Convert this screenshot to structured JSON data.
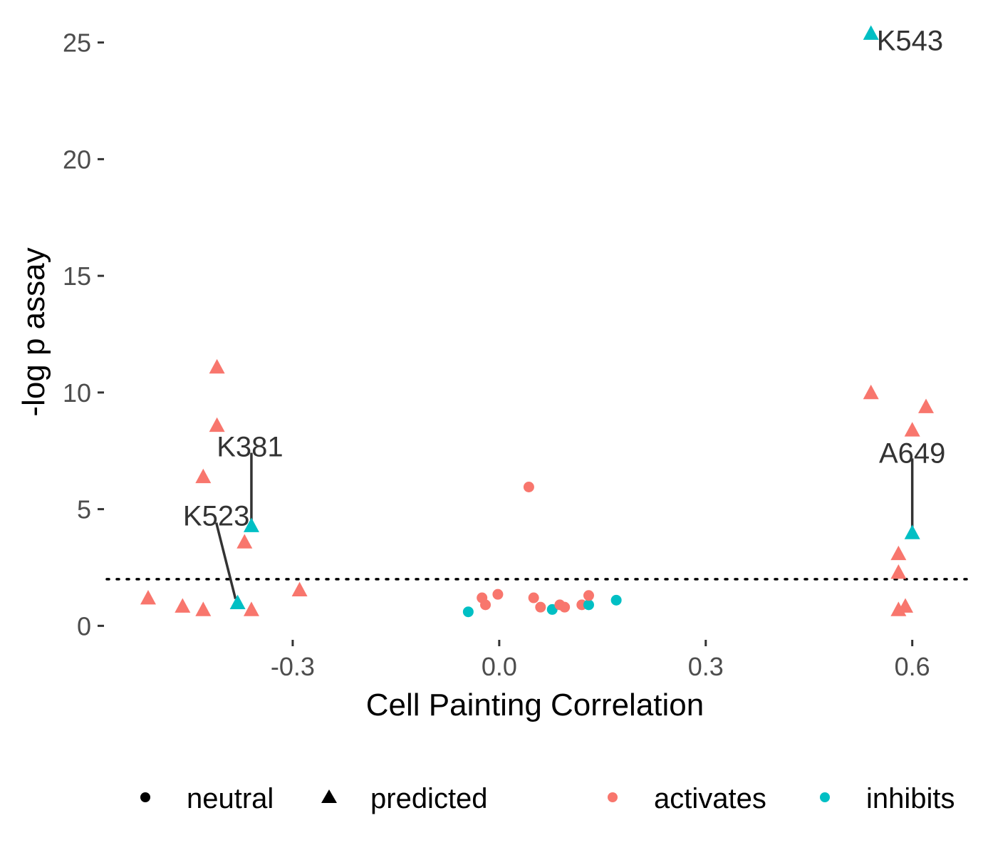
{
  "chart_data": {
    "type": "scatter",
    "xlabel": "Cell Painting Correlation",
    "ylabel": "-log p assay",
    "xlim": [
      -0.57,
      0.68
    ],
    "ylim": [
      -0.6,
      25.6
    ],
    "x_ticks": [
      -0.3,
      0.0,
      0.3,
      0.6
    ],
    "x_tick_labels": [
      "-0.3",
      "0.0",
      "0.3",
      "0.6"
    ],
    "y_ticks": [
      0,
      5,
      10,
      15,
      20,
      25
    ],
    "y_tick_labels": [
      "0",
      "5",
      "10",
      "15",
      "20",
      "25"
    ],
    "threshold_line": {
      "y": 2,
      "style": "dotted"
    },
    "grid": false,
    "legend_position": "bottom",
    "legend": {
      "shape_items": [
        {
          "shape": "circle",
          "label": "neutral"
        },
        {
          "shape": "triangle",
          "label": "predicted"
        }
      ],
      "color_items": [
        {
          "color": "#F8766D",
          "label": "activates"
        },
        {
          "color": "#00BFC4",
          "label": "inhibits"
        }
      ]
    },
    "colors": {
      "activates": "#F8766D",
      "inhibits": "#00BFC4"
    },
    "points": [
      {
        "x": -0.51,
        "y": 1.2,
        "shape": "triangle",
        "effect": "activates"
      },
      {
        "x": -0.46,
        "y": 0.85,
        "shape": "triangle",
        "effect": "activates"
      },
      {
        "x": -0.43,
        "y": 0.7,
        "shape": "triangle",
        "effect": "activates"
      },
      {
        "x": -0.43,
        "y": 6.4,
        "shape": "triangle",
        "effect": "activates"
      },
      {
        "x": -0.41,
        "y": 11.1,
        "shape": "triangle",
        "effect": "activates"
      },
      {
        "x": -0.41,
        "y": 8.6,
        "shape": "triangle",
        "effect": "activates"
      },
      {
        "x": -0.38,
        "y": 1.0,
        "shape": "triangle",
        "effect": "inhibits"
      },
      {
        "x": -0.37,
        "y": 3.6,
        "shape": "triangle",
        "effect": "activates"
      },
      {
        "x": -0.36,
        "y": 4.3,
        "shape": "triangle",
        "effect": "inhibits"
      },
      {
        "x": -0.36,
        "y": 0.7,
        "shape": "triangle",
        "effect": "activates"
      },
      {
        "x": -0.29,
        "y": 1.55,
        "shape": "triangle",
        "effect": "activates"
      },
      {
        "x": -0.045,
        "y": 0.6,
        "shape": "circle",
        "effect": "inhibits"
      },
      {
        "x": -0.025,
        "y": 1.2,
        "shape": "circle",
        "effect": "activates"
      },
      {
        "x": -0.02,
        "y": 0.9,
        "shape": "circle",
        "effect": "activates"
      },
      {
        "x": -0.002,
        "y": 1.35,
        "shape": "circle",
        "effect": "activates"
      },
      {
        "x": 0.043,
        "y": 5.95,
        "shape": "circle",
        "effect": "activates"
      },
      {
        "x": 0.05,
        "y": 1.2,
        "shape": "circle",
        "effect": "activates"
      },
      {
        "x": 0.06,
        "y": 0.8,
        "shape": "circle",
        "effect": "activates"
      },
      {
        "x": 0.077,
        "y": 0.7,
        "shape": "circle",
        "effect": "inhibits"
      },
      {
        "x": 0.088,
        "y": 0.9,
        "shape": "circle",
        "effect": "activates"
      },
      {
        "x": 0.095,
        "y": 0.8,
        "shape": "circle",
        "effect": "activates"
      },
      {
        "x": 0.12,
        "y": 0.9,
        "shape": "circle",
        "effect": "activates"
      },
      {
        "x": 0.13,
        "y": 0.9,
        "shape": "circle",
        "effect": "inhibits"
      },
      {
        "x": 0.13,
        "y": 1.3,
        "shape": "circle",
        "effect": "activates"
      },
      {
        "x": 0.17,
        "y": 1.1,
        "shape": "circle",
        "effect": "inhibits"
      },
      {
        "x": 0.54,
        "y": 25.4,
        "shape": "triangle",
        "effect": "inhibits"
      },
      {
        "x": 0.54,
        "y": 10.0,
        "shape": "triangle",
        "effect": "activates"
      },
      {
        "x": 0.58,
        "y": 3.1,
        "shape": "triangle",
        "effect": "activates"
      },
      {
        "x": 0.58,
        "y": 2.3,
        "shape": "triangle",
        "effect": "activates"
      },
      {
        "x": 0.58,
        "y": 0.7,
        "shape": "triangle",
        "effect": "activates"
      },
      {
        "x": 0.59,
        "y": 0.85,
        "shape": "triangle",
        "effect": "activates"
      },
      {
        "x": 0.6,
        "y": 4.0,
        "shape": "triangle",
        "effect": "inhibits"
      },
      {
        "x": 0.6,
        "y": 8.4,
        "shape": "triangle",
        "effect": "activates"
      },
      {
        "x": 0.62,
        "y": 9.4,
        "shape": "triangle",
        "effect": "activates"
      }
    ],
    "annotations": [
      {
        "text": "K543",
        "x": 0.54,
        "y": 25.4
      },
      {
        "text": "K381",
        "x": -0.36,
        "y": 4.3
      },
      {
        "text": "K523",
        "x": -0.38,
        "y": 1.0
      },
      {
        "text": "A649",
        "x": 0.6,
        "y": 4.0
      }
    ]
  }
}
